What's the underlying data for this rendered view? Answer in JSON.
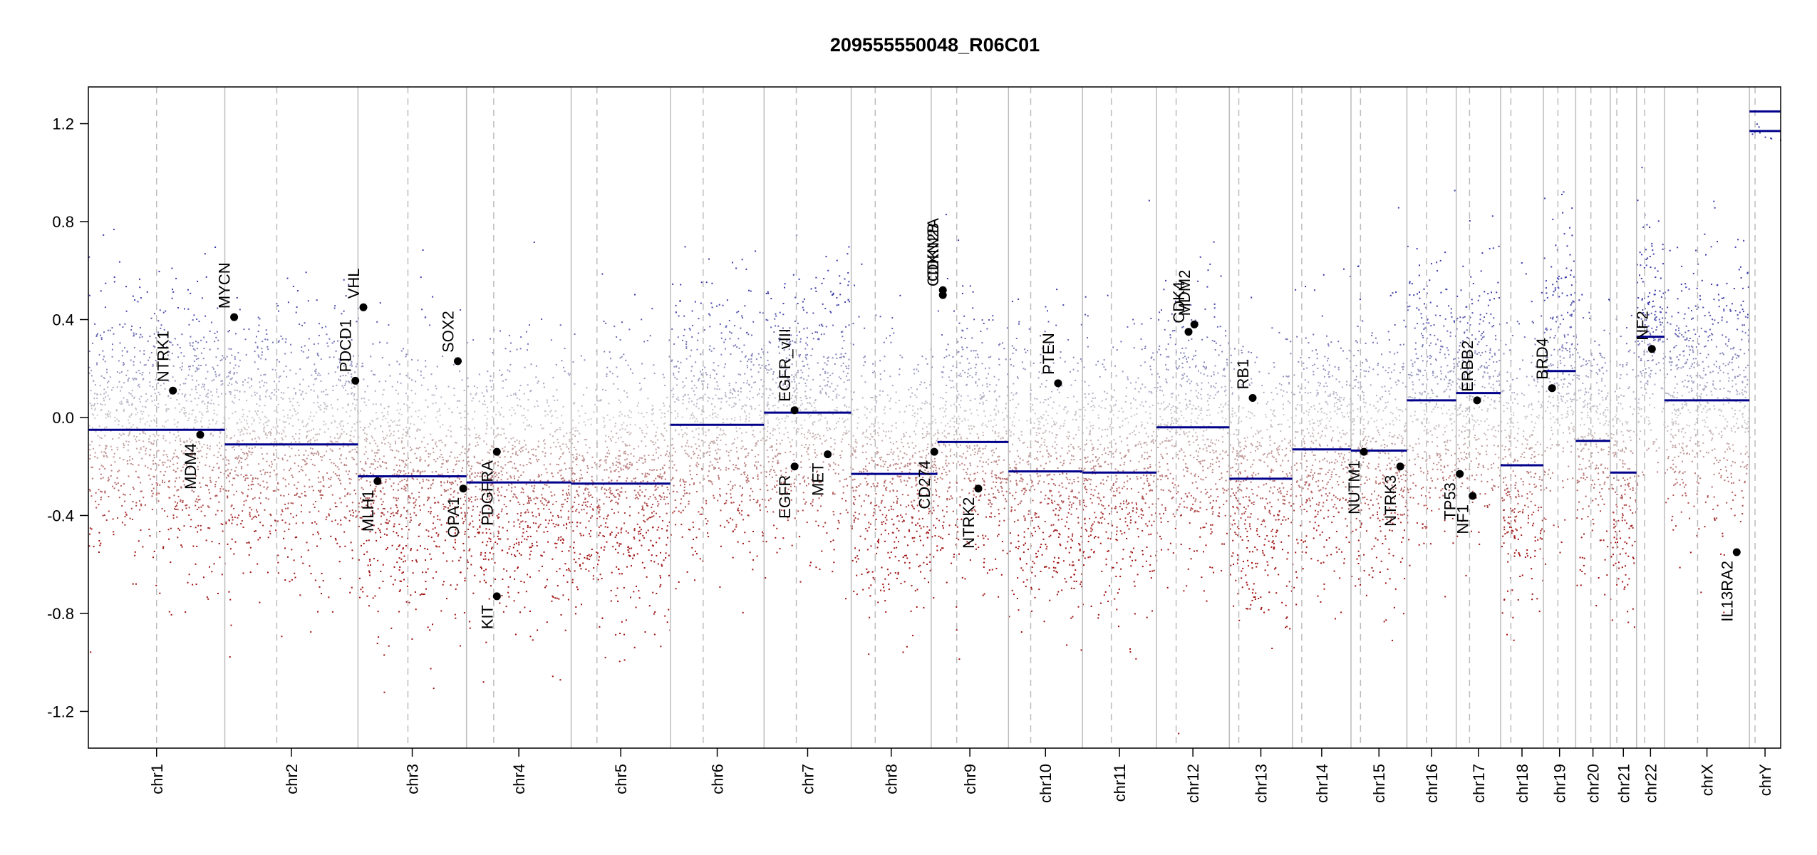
{
  "chart_data": {
    "type": "scatter",
    "title": "209555550048_R06C01",
    "xlabel": "",
    "ylabel": "",
    "ylim": [
      -1.35,
      1.35
    ],
    "yticks": [
      -1.2,
      -0.8,
      -0.4,
      0.0,
      0.4,
      0.8,
      1.2
    ],
    "ytick_labels": [
      "-1.2",
      "-0.8",
      "-0.4",
      "0.0",
      "0.4",
      "0.8",
      "1.2"
    ],
    "grid": false,
    "colors": {
      "gain": "#3a3aaa",
      "loss": "#a01010",
      "neutral": "#c8c8c8",
      "segment": "#00008b",
      "boundary": "#bdbdbd",
      "gene": "#000000"
    },
    "chromosomes": [
      {
        "name": "chr1",
        "length": 249,
        "centromere": 0.5,
        "segments": [
          {
            "start": 0,
            "end": 1,
            "value": -0.05
          }
        ]
      },
      {
        "name": "chr2",
        "length": 243,
        "centromere": 0.39,
        "segments": [
          {
            "start": 0,
            "end": 1,
            "value": -0.11
          }
        ]
      },
      {
        "name": "chr3",
        "length": 198,
        "centromere": 0.46,
        "segments": [
          {
            "start": 0,
            "end": 1,
            "value": -0.24
          }
        ]
      },
      {
        "name": "chr4",
        "length": 191,
        "centromere": 0.26,
        "segments": [
          {
            "start": 0,
            "end": 1,
            "value": -0.265
          }
        ]
      },
      {
        "name": "chr5",
        "length": 181,
        "centromere": 0.26,
        "segments": [
          {
            "start": 0,
            "end": 1,
            "value": -0.27
          }
        ]
      },
      {
        "name": "chr6",
        "length": 171,
        "centromere": 0.35,
        "segments": [
          {
            "start": 0,
            "end": 1,
            "value": -0.03
          }
        ]
      },
      {
        "name": "chr7",
        "length": 159,
        "centromere": 0.37,
        "segments": [
          {
            "start": 0,
            "end": 1,
            "value": 0.02
          }
        ]
      },
      {
        "name": "chr8",
        "length": 146,
        "centromere": 0.3,
        "segments": [
          {
            "start": 0,
            "end": 1,
            "value": -0.23
          }
        ]
      },
      {
        "name": "chr9",
        "length": 141,
        "centromere": 0.33,
        "segments": [
          {
            "start": 0,
            "end": 0.08,
            "value": -0.23
          },
          {
            "start": 0.08,
            "end": 1,
            "value": -0.1
          }
        ]
      },
      {
        "name": "chr10",
        "length": 135,
        "centromere": 0.3,
        "segments": [
          {
            "start": 0,
            "end": 1,
            "value": -0.22
          }
        ]
      },
      {
        "name": "chr11",
        "length": 135,
        "centromere": 0.39,
        "segments": [
          {
            "start": 0,
            "end": 1,
            "value": -0.225
          }
        ]
      },
      {
        "name": "chr12",
        "length": 133,
        "centromere": 0.27,
        "segments": [
          {
            "start": 0,
            "end": 1,
            "value": -0.04
          }
        ]
      },
      {
        "name": "chr13",
        "length": 115,
        "centromere": 0.15,
        "segments": [
          {
            "start": 0,
            "end": 1,
            "value": -0.25
          }
        ]
      },
      {
        "name": "chr14",
        "length": 107,
        "centromere": 0.16,
        "segments": [
          {
            "start": 0,
            "end": 1,
            "value": -0.13
          }
        ]
      },
      {
        "name": "chr15",
        "length": 102,
        "centromere": 0.17,
        "segments": [
          {
            "start": 0,
            "end": 1,
            "value": -0.135
          }
        ]
      },
      {
        "name": "chr16",
        "length": 90,
        "centromere": 0.4,
        "segments": [
          {
            "start": 0,
            "end": 1,
            "value": 0.07
          }
        ]
      },
      {
        "name": "chr17",
        "length": 81,
        "centromere": 0.3,
        "segments": [
          {
            "start": 0,
            "end": 1,
            "value": 0.1
          }
        ]
      },
      {
        "name": "chr18",
        "length": 78,
        "centromere": 0.24,
        "segments": [
          {
            "start": 0,
            "end": 1,
            "value": -0.195
          }
        ]
      },
      {
        "name": "chr19",
        "length": 59,
        "centromere": 0.45,
        "segments": [
          {
            "start": 0,
            "end": 1,
            "value": 0.19
          }
        ]
      },
      {
        "name": "chr20",
        "length": 63,
        "centromere": 0.44,
        "segments": [
          {
            "start": 0,
            "end": 1,
            "value": -0.095
          }
        ]
      },
      {
        "name": "chr21",
        "length": 48,
        "centromere": 0.25,
        "segments": [
          {
            "start": 0,
            "end": 1,
            "value": -0.225
          }
        ]
      },
      {
        "name": "chr22",
        "length": 51,
        "centromere": 0.29,
        "segments": [
          {
            "start": 0,
            "end": 1,
            "value": 0.33
          }
        ]
      },
      {
        "name": "chrX",
        "length": 155,
        "centromere": 0.39,
        "segments": [
          {
            "start": 0,
            "end": 1,
            "value": 0.07
          }
        ]
      },
      {
        "name": "chrY",
        "length": 57,
        "centromere": 0.18,
        "segments": [
          {
            "start": 0,
            "end": 1,
            "value": 1.17
          },
          {
            "start": 0,
            "end": 1,
            "value": 1.25
          }
        ]
      }
    ],
    "genes": [
      {
        "name": "NTRK1",
        "chrom": "chr1",
        "pos": 0.62,
        "value": 0.11,
        "label_side": "above"
      },
      {
        "name": "MDM4",
        "chrom": "chr1",
        "pos": 0.82,
        "value": -0.07,
        "label_side": "below"
      },
      {
        "name": "MYCN",
        "chrom": "chr2",
        "pos": 0.07,
        "value": 0.41,
        "label_side": "above"
      },
      {
        "name": "PDCD1",
        "chrom": "chr2",
        "pos": 0.98,
        "value": 0.15,
        "label_side": "above"
      },
      {
        "name": "VHL",
        "chrom": "chr3",
        "pos": 0.05,
        "value": 0.45,
        "label_side": "above"
      },
      {
        "name": "MLH1",
        "chrom": "chr3",
        "pos": 0.18,
        "value": -0.26,
        "label_side": "below"
      },
      {
        "name": "SOX2",
        "chrom": "chr3",
        "pos": 0.92,
        "value": 0.23,
        "label_side": "above"
      },
      {
        "name": "OPA1",
        "chrom": "chr3",
        "pos": 0.97,
        "value": -0.29,
        "label_side": "below"
      },
      {
        "name": "PDGFRA",
        "chrom": "chr4",
        "pos": 0.29,
        "value": -0.14,
        "label_side": "below"
      },
      {
        "name": "KIT",
        "chrom": "chr4",
        "pos": 0.29,
        "value": -0.73,
        "label_side": "below"
      },
      {
        "name": "EGFR_vIII",
        "chrom": "chr7",
        "pos": 0.35,
        "value": 0.03,
        "label_side": "above"
      },
      {
        "name": "EGFR",
        "chrom": "chr7",
        "pos": 0.35,
        "value": -0.2,
        "label_side": "below"
      },
      {
        "name": "MET",
        "chrom": "chr7",
        "pos": 0.73,
        "value": -0.15,
        "label_side": "below"
      },
      {
        "name": "CD274",
        "chrom": "chr9",
        "pos": 0.04,
        "value": -0.14,
        "label_side": "below"
      },
      {
        "name": "CDKN2A",
        "chrom": "chr9",
        "pos": 0.15,
        "value": 0.52,
        "label_side": "above"
      },
      {
        "name": "CDKN2B",
        "chrom": "chr9",
        "pos": 0.15,
        "value": 0.5,
        "label_side": "above"
      },
      {
        "name": "NTRK2",
        "chrom": "chr9",
        "pos": 0.61,
        "value": -0.29,
        "label_side": "below"
      },
      {
        "name": "PTEN",
        "chrom": "chr10",
        "pos": 0.67,
        "value": 0.14,
        "label_side": "above"
      },
      {
        "name": "CDK4",
        "chrom": "chr12",
        "pos": 0.44,
        "value": 0.35,
        "label_side": "above"
      },
      {
        "name": "MDM2",
        "chrom": "chr12",
        "pos": 0.52,
        "value": 0.38,
        "label_side": "above"
      },
      {
        "name": "RB1",
        "chrom": "chr13",
        "pos": 0.37,
        "value": 0.08,
        "label_side": "above"
      },
      {
        "name": "NUTM1",
        "chrom": "chr15",
        "pos": 0.23,
        "value": -0.14,
        "label_side": "below"
      },
      {
        "name": "NTRK3",
        "chrom": "chr15",
        "pos": 0.88,
        "value": -0.2,
        "label_side": "below"
      },
      {
        "name": "TP53",
        "chrom": "chr17",
        "pos": 0.08,
        "value": -0.23,
        "label_side": "below"
      },
      {
        "name": "NF1",
        "chrom": "chr17",
        "pos": 0.37,
        "value": -0.32,
        "label_side": "below"
      },
      {
        "name": "ERBB2",
        "chrom": "chr17",
        "pos": 0.47,
        "value": 0.07,
        "label_side": "above"
      },
      {
        "name": "BRD4",
        "chrom": "chr19",
        "pos": 0.27,
        "value": 0.12,
        "label_side": "above"
      },
      {
        "name": "NF2",
        "chrom": "chr22",
        "pos": 0.55,
        "value": 0.28,
        "label_side": "above"
      },
      {
        "name": "IL13RA2",
        "chrom": "chrX",
        "pos": 0.85,
        "value": -0.55,
        "label_side": "below"
      }
    ],
    "points_per_chromosome_note": ""
  }
}
